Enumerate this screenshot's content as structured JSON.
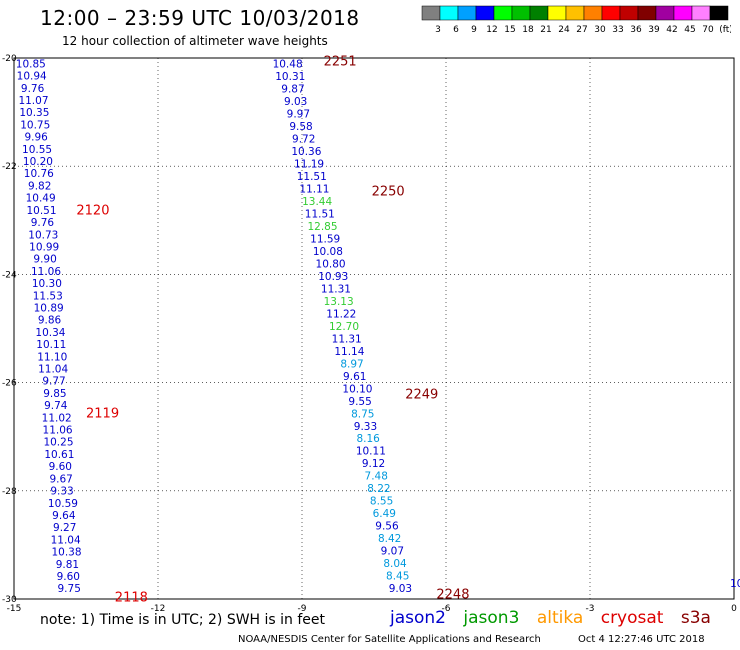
{
  "title": "12:00 – 23:59 UTC 10/03/2018",
  "subtitle": "12 hour collection of altimeter wave heights",
  "colorbar": {
    "labels": [
      "3",
      "6",
      "9",
      "12",
      "15",
      "18",
      "21",
      "24",
      "27",
      "30",
      "33",
      "36",
      "39",
      "42",
      "45",
      "70",
      "(ft)"
    ],
    "colors": [
      "#808080",
      "#00ffff",
      "#00a0ff",
      "#0000ff",
      "#00ff00",
      "#00c000",
      "#008000",
      "#ffff00",
      "#ffc000",
      "#ff8000",
      "#ff0000",
      "#c00000",
      "#800000",
      "#a000a0",
      "#ff00ff",
      "#ff80ff",
      "#000000"
    ]
  },
  "footer": {
    "note": "note:  1) Time is in UTC;  2) SWH is in feet",
    "satellites": [
      {
        "name": "jason2",
        "color": "#0000cc"
      },
      {
        "name": "jason3",
        "color": "#009900"
      },
      {
        "name": "altika",
        "color": "#ff9900"
      },
      {
        "name": "cryosat",
        "color": "#dd0000"
      },
      {
        "name": "s3a",
        "color": "#880000"
      }
    ],
    "credit": "NOAA/NESDIS Center for Satellite Applications and Research",
    "timestamp": "Oct  4 12:27:46 UTC 2018"
  },
  "chart_data": {
    "type": "scatter",
    "title": "12:00 – 23:59 UTC 10/03/2018",
    "subtitle": "12 hour collection of altimeter wave heights",
    "xlim": [
      -15,
      0
    ],
    "ylim": [
      -30,
      -20
    ],
    "xticks": [
      "-15",
      "-12",
      "-9",
      "-6",
      "-3",
      "0"
    ],
    "yticks": [
      "-20",
      "-22",
      "-24",
      "-26",
      "-28",
      "-30"
    ],
    "grid": true,
    "edge_label": "10",
    "tracks": [
      {
        "x_start": -14.65,
        "x_end": -13.85,
        "values": [
          "10.85",
          "10.94",
          "9.76",
          "11.07",
          "10.35",
          "10.75",
          "9.96",
          "10.55",
          "10.20",
          "10.76",
          "9.82",
          "10.49",
          "10.51",
          "9.76",
          "10.73",
          "10.99",
          "9.90",
          "11.06",
          "10.30",
          "11.53",
          "10.89",
          "9.86",
          "10.34",
          "10.11",
          "11.10",
          "11.04",
          "9.77",
          "9.85",
          "9.74",
          "11.02",
          "11.06",
          "10.25",
          "10.61",
          "9.60",
          "9.67",
          "9.33",
          "10.59",
          "9.64",
          "9.27",
          "11.04",
          "10.38",
          "9.81",
          "9.60",
          "9.75"
        ],
        "colors": [
          "#0000cc",
          "#0000cc",
          "#0000cc",
          "#0000cc",
          "#0000cc",
          "#0000cc",
          "#0000cc",
          "#0000cc",
          "#0000cc",
          "#0000cc",
          "#0000cc",
          "#0000cc",
          "#0000cc",
          "#0000cc",
          "#0000cc",
          "#0000cc",
          "#0000cc",
          "#0000cc",
          "#0000cc",
          "#0000cc",
          "#0000cc",
          "#0000cc",
          "#0000cc",
          "#0000cc",
          "#0000cc",
          "#0000cc",
          "#0000cc",
          "#0000cc",
          "#0000cc",
          "#0000cc",
          "#0000cc",
          "#0000cc",
          "#0000cc",
          "#0000cc",
          "#0000cc",
          "#0000cc",
          "#0000cc",
          "#0000cc",
          "#0000cc",
          "#0000cc",
          "#0000cc",
          "#0000cc",
          "#0000cc",
          "#0000cc"
        ]
      },
      {
        "x_start": -9.3,
        "x_end": -6.95,
        "values": [
          "10.48",
          "10.31",
          "9.87",
          "9.03",
          "9.97",
          "9.58",
          "9.72",
          "10.36",
          "11.19",
          "11.51",
          "11.11",
          "13.44",
          "11.51",
          "12.85",
          "11.59",
          "10.08",
          "10.80",
          "10.93",
          "11.31",
          "13.13",
          "11.22",
          "12.70",
          "11.31",
          "11.14",
          "8.97",
          "9.61",
          "10.10",
          "9.55",
          "8.75",
          "9.33",
          "8.16",
          "10.11",
          "9.12",
          "7.48",
          "8.22",
          "8.55",
          "6.49",
          "9.56",
          "8.42",
          "9.07",
          "8.04",
          "8.45",
          "9.03"
        ],
        "colors": [
          "#0000cc",
          "#0000cc",
          "#0000cc",
          "#0000cc",
          "#0000cc",
          "#0000cc",
          "#0000cc",
          "#0000cc",
          "#0000cc",
          "#0000cc",
          "#0000cc",
          "#33cc33",
          "#0000cc",
          "#33cc33",
          "#0000cc",
          "#0000cc",
          "#0000cc",
          "#0000cc",
          "#0000cc",
          "#33cc33",
          "#0000cc",
          "#33cc33",
          "#0000cc",
          "#0000cc",
          "#0099dd",
          "#0000cc",
          "#0000cc",
          "#0000cc",
          "#0099dd",
          "#0000cc",
          "#0099dd",
          "#0000cc",
          "#0000cc",
          "#0099dd",
          "#0099dd",
          "#0099dd",
          "#0099dd",
          "#0000cc",
          "#0099dd",
          "#0000cc",
          "#0099dd",
          "#0099dd",
          "#0000cc"
        ]
      }
    ],
    "time_labels": [
      {
        "label": "2251",
        "x": -8.55,
        "y": -20.05,
        "color": "#880000"
      },
      {
        "label": "2250",
        "x": -7.55,
        "y": -22.45,
        "color": "#880000"
      },
      {
        "label": "2249",
        "x": -6.85,
        "y": -26.2,
        "color": "#880000"
      },
      {
        "label": "2248",
        "x": -6.2,
        "y": -29.9,
        "color": "#880000"
      },
      {
        "label": "2120",
        "x": -13.7,
        "y": -22.8,
        "color": "#dd0000"
      },
      {
        "label": "2119",
        "x": -13.5,
        "y": -26.55,
        "color": "#dd0000"
      },
      {
        "label": "2118",
        "x": -12.9,
        "y": -29.95,
        "color": "#dd0000"
      }
    ]
  }
}
